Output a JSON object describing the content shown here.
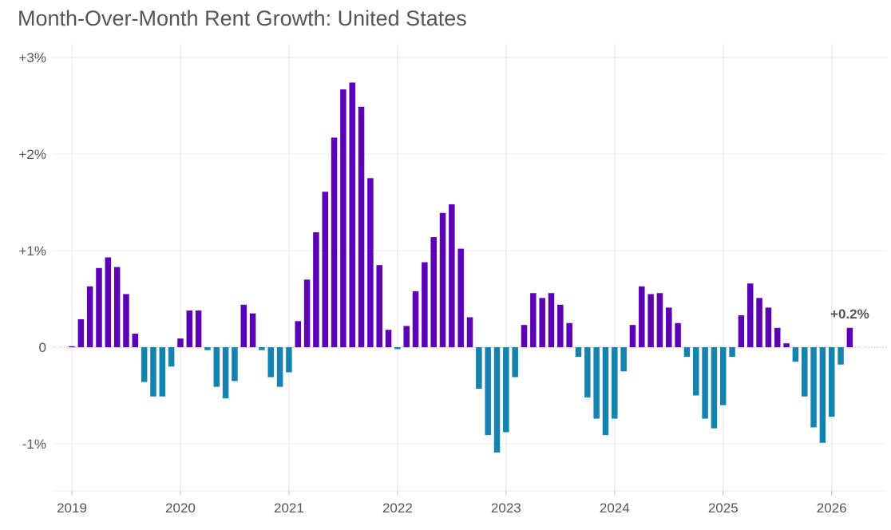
{
  "chart_data": {
    "type": "bar",
    "title": "Month-Over-Month Rent Growth: United States",
    "xlabel": "",
    "ylabel": "",
    "ylim": [
      -1.5,
      3.1
    ],
    "y_ticks": [
      {
        "value": 3,
        "label": "+3%"
      },
      {
        "value": 2,
        "label": "+2%"
      },
      {
        "value": 1,
        "label": "+1%"
      },
      {
        "value": 0,
        "label": "0"
      },
      {
        "value": -1,
        "label": "-1%"
      }
    ],
    "x_ticks": [
      "2019",
      "2020",
      "2021",
      "2022",
      "2023",
      "2024",
      "2025",
      "2026"
    ],
    "x_start": "2019-01",
    "colors": {
      "positive": "#5B00B7",
      "negative": "#1483B0"
    },
    "grid": true,
    "annotation": {
      "text": "+0.2%",
      "target": "last"
    },
    "values": [
      0.01,
      0.29,
      0.63,
      0.82,
      0.93,
      0.83,
      0.55,
      0.14,
      -0.36,
      -0.51,
      -0.51,
      -0.2,
      0.09,
      0.38,
      0.38,
      -0.03,
      -0.41,
      -0.53,
      -0.35,
      0.44,
      0.35,
      -0.03,
      -0.31,
      -0.41,
      -0.26,
      0.27,
      0.7,
      1.19,
      1.61,
      2.17,
      2.67,
      2.74,
      2.49,
      1.75,
      0.85,
      0.18,
      -0.02,
      0.22,
      0.58,
      0.88,
      1.14,
      1.39,
      1.48,
      1.02,
      0.31,
      -0.43,
      -0.91,
      -1.09,
      -0.88,
      -0.31,
      0.23,
      0.56,
      0.51,
      0.56,
      0.44,
      0.25,
      -0.1,
      -0.52,
      -0.74,
      -0.91,
      -0.74,
      -0.25,
      0.23,
      0.63,
      0.55,
      0.56,
      0.41,
      0.25,
      -0.1,
      -0.5,
      -0.74,
      -0.84,
      -0.6,
      -0.1,
      0.33,
      0.66,
      0.51,
      0.41,
      0.2,
      0.04,
      -0.15,
      -0.51,
      -0.83,
      -0.99,
      -0.72,
      -0.18,
      0.2
    ]
  }
}
